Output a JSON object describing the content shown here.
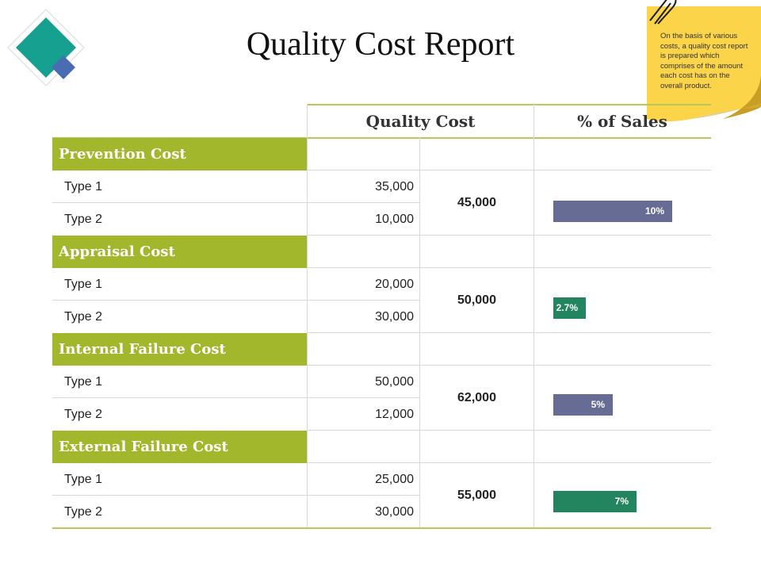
{
  "title": "Quality Cost Report",
  "note": {
    "text": "On the basis of various costs, a quality cost report is prepared which comprises of the amount each cost has on the overall product."
  },
  "colors": {
    "category_bg": "#a2b72c",
    "bar_blue": "#676c94",
    "bar_green": "#238560",
    "logo_teal": "#15a08f",
    "logo_blue": "#4a6cb3",
    "note_yellow": "#fbd449"
  },
  "columns": {
    "quality_cost": "Quality Cost",
    "percent_sales": "% of Sales"
  },
  "sales_scale_max_percent": 15,
  "categories": [
    {
      "name": "Prevention Cost",
      "types": [
        {
          "label": "Type 1",
          "value": "35,000"
        },
        {
          "label": "Type 2",
          "value": "10,000"
        }
      ],
      "total": "45,000",
      "percent": 10,
      "percent_label": "10%",
      "bar_color": "#676c94"
    },
    {
      "name": "Appraisal Cost",
      "types": [
        {
          "label": "Type 1",
          "value": "20,000"
        },
        {
          "label": "Type 2",
          "value": "30,000"
        }
      ],
      "total": "50,000",
      "percent": 2.7,
      "percent_label": "2.7%",
      "bar_color": "#238560"
    },
    {
      "name": "Internal Failure Cost",
      "types": [
        {
          "label": "Type 1",
          "value": "50,000"
        },
        {
          "label": "Type 2",
          "value": "12,000"
        }
      ],
      "total": "62,000",
      "percent": 5,
      "percent_label": "5%",
      "bar_color": "#676c94"
    },
    {
      "name": "External Failure Cost",
      "types": [
        {
          "label": "Type 1",
          "value": "25,000"
        },
        {
          "label": "Type 2",
          "value": "30,000"
        }
      ],
      "total": "55,000",
      "percent": 7,
      "percent_label": "7%",
      "bar_color": "#238560"
    }
  ]
}
